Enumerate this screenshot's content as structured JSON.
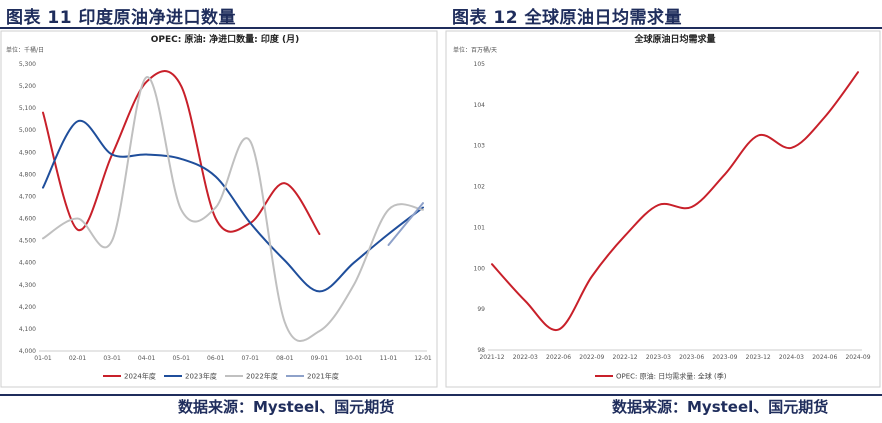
{
  "figures": {
    "left_title": "图表 11 印度原油净进口数量",
    "right_title": "图表 12 全球原油日均需求量",
    "left_source": "数据来源：Mysteel、国元期货",
    "right_source": "数据来源：Mysteel、国元期货"
  },
  "chart_data": [
    {
      "type": "line",
      "title": "OPEC: 原油: 净进口数量: 印度 (月)",
      "unit_label": "单位：千桶/日",
      "categories": [
        "01-01",
        "02-01",
        "03-01",
        "04-01",
        "05-01",
        "06-01",
        "07-01",
        "08-01",
        "09-01",
        "10-01",
        "11-01",
        "12-01"
      ],
      "ylim": [
        4000,
        5300
      ],
      "yticks": [
        "4,000",
        "4,100",
        "4,200",
        "4,300",
        "4,400",
        "4,500",
        "4,600",
        "4,700",
        "4,800",
        "4,900",
        "5,000",
        "5,100",
        "5,200",
        "5,300"
      ],
      "legend_position": "bottom",
      "series": [
        {
          "name": "2024年度",
          "color": "#c8202a",
          "values": [
            5080,
            4550,
            4890,
            5220,
            5200,
            4600,
            4580,
            4760,
            4530,
            null,
            null,
            null
          ]
        },
        {
          "name": "2023年度",
          "color": "#1f4e9b",
          "values": [
            4740,
            5040,
            4890,
            4890,
            4870,
            4790,
            4580,
            4410,
            4270,
            4400,
            4530,
            4650
          ]
        },
        {
          "name": "2022年度",
          "color": "#c0c0c0",
          "values": [
            4510,
            4600,
            4500,
            5240,
            4640,
            4650,
            4950,
            4130,
            4090,
            4300,
            4640,
            4640
          ]
        },
        {
          "name": "2021年度",
          "color": "#8ea1c9",
          "values": [
            null,
            null,
            null,
            null,
            null,
            null,
            null,
            null,
            null,
            null,
            4480,
            4670
          ]
        }
      ]
    },
    {
      "type": "line",
      "title": "全球原油日均需求量",
      "unit_label": "单位：百万桶/天",
      "categories": [
        "2021-12",
        "2022-03",
        "2022-06",
        "2022-09",
        "2022-12",
        "2023-03",
        "2023-06",
        "2023-09",
        "2023-12",
        "2024-03",
        "2024-06",
        "2024-09"
      ],
      "ylim": [
        98,
        105
      ],
      "yticks": [
        "98",
        "99",
        "100",
        "101",
        "102",
        "103",
        "104",
        "105"
      ],
      "legend_position": "bottom",
      "series": [
        {
          "name": "OPEC: 原油: 日均需求量: 全球 (季)",
          "color": "#c8202a",
          "values": [
            100.1,
            99.2,
            98.5,
            99.8,
            100.8,
            101.55,
            101.5,
            102.3,
            103.25,
            102.95,
            103.7,
            104.8
          ]
        }
      ]
    }
  ]
}
